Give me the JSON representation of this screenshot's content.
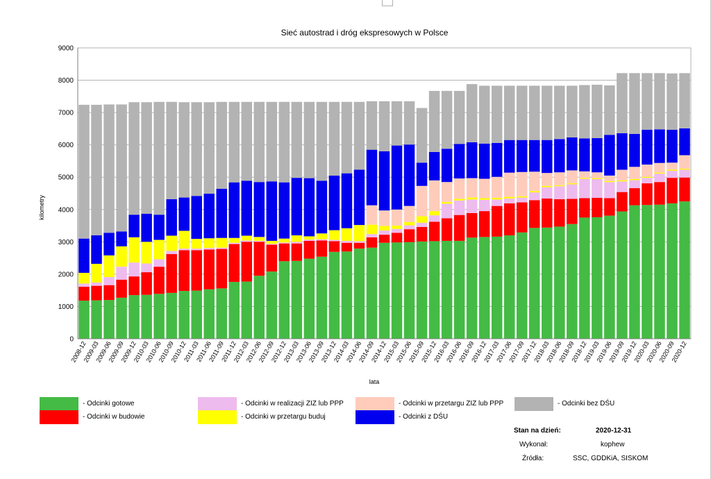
{
  "chart_data": {
    "type": "bar",
    "stacked": true,
    "title": "Sieć autostrad i dróg ekspresowych w Polsce",
    "xlabel": "lata",
    "ylabel": "kilometry",
    "ylim": [
      0,
      9000
    ],
    "yticks": [
      0,
      1000,
      2000,
      3000,
      4000,
      5000,
      6000,
      7000,
      8000,
      9000
    ],
    "grid": true,
    "categories": [
      "2008-12",
      "2009-03",
      "2009-06",
      "2009-09",
      "2009-12",
      "2010-03",
      "2010-06",
      "2010-09",
      "2010-12",
      "2011-03",
      "2011-06",
      "2011-09",
      "2011-12",
      "2012-03",
      "2012-06",
      "2012-09",
      "2012-12",
      "2013-03",
      "2013-06",
      "2013-09",
      "2013-12",
      "2014-03",
      "2014-06",
      "2014-09",
      "2014-12",
      "2015-03",
      "2015-06",
      "2015-09",
      "2015-12",
      "2016-03",
      "2016-06",
      "2016-09",
      "2016-12",
      "2017-03",
      "2017-06",
      "2017-09",
      "2017-12",
      "2018-03",
      "2018-06",
      "2018-09",
      "2018-12",
      "2019-03",
      "2019-06",
      "2019-09",
      "2019-12",
      "2020-03",
      "2020-06",
      "2020-09",
      "2020-12"
    ],
    "series": [
      {
        "name": "- Odcinki gotowe",
        "color": "#44bb44",
        "values": [
          1180,
          1190,
          1200,
          1270,
          1350,
          1360,
          1390,
          1420,
          1480,
          1490,
          1530,
          1560,
          1760,
          1770,
          1950,
          2080,
          2400,
          2410,
          2480,
          2540,
          2690,
          2700,
          2790,
          2820,
          2970,
          2980,
          2990,
          3010,
          3020,
          3030,
          3030,
          3130,
          3150,
          3160,
          3200,
          3290,
          3430,
          3440,
          3470,
          3550,
          3750,
          3760,
          3810,
          3940,
          4130,
          4140,
          4150,
          4190,
          4250
        ]
      },
      {
        "name": "- Odcinki w budowie",
        "color": "#ff0000",
        "values": [
          430,
          450,
          460,
          560,
          580,
          700,
          840,
          1200,
          1260,
          1250,
          1230,
          1220,
          1170,
          1230,
          1050,
          830,
          550,
          540,
          550,
          500,
          330,
          270,
          180,
          320,
          250,
          300,
          400,
          450,
          600,
          700,
          800,
          760,
          800,
          950,
          990,
          930,
          860,
          900,
          850,
          780,
          600,
          600,
          540,
          600,
          530,
          670,
          700,
          790,
          740
        ]
      },
      {
        "name": "- Odcinki w realizacji ZIZ lub PPP",
        "color": "#eebbee",
        "values": [
          100,
          100,
          250,
          400,
          430,
          270,
          230,
          100,
          50,
          50,
          50,
          40,
          40,
          40,
          30,
          30,
          30,
          50,
          40,
          40,
          40,
          60,
          50,
          100,
          130,
          120,
          120,
          130,
          200,
          450,
          450,
          420,
          350,
          200,
          150,
          150,
          240,
          350,
          400,
          450,
          600,
          580,
          500,
          330,
          250,
          170,
          260,
          220,
          240
        ]
      },
      {
        "name": "- Odcinki w przetargu buduj",
        "color": "#ffff00",
        "values": [
          330,
          580,
          670,
          630,
          780,
          670,
          600,
          470,
          550,
          300,
          300,
          300,
          150,
          150,
          120,
          90,
          120,
          200,
          100,
          180,
          300,
          390,
          500,
          290,
          140,
          100,
          100,
          200,
          130,
          50,
          50,
          60,
          50,
          50,
          50,
          40,
          40,
          40,
          30,
          30,
          30,
          30,
          30,
          30,
          30,
          30,
          30,
          30,
          30
        ]
      },
      {
        "name": "- Odcinki w przetargu ZIZ lub PPP",
        "color": "#ffccbb",
        "values": [
          0,
          0,
          0,
          0,
          0,
          0,
          0,
          0,
          0,
          0,
          0,
          0,
          0,
          0,
          0,
          0,
          0,
          0,
          0,
          0,
          0,
          0,
          0,
          600,
          480,
          500,
          500,
          940,
          950,
          620,
          630,
          600,
          600,
          650,
          750,
          750,
          600,
          400,
          400,
          400,
          200,
          180,
          170,
          330,
          380,
          380,
          300,
          220,
          420
        ]
      },
      {
        "name": "- Odcinki z DŚU",
        "color": "#0000ee",
        "values": [
          1060,
          880,
          700,
          460,
          700,
          870,
          780,
          1130,
          1030,
          1330,
          1380,
          1520,
          1720,
          1700,
          1700,
          1840,
          1740,
          1780,
          1800,
          1630,
          1690,
          1700,
          1710,
          1720,
          1830,
          1980,
          1900,
          720,
          880,
          1030,
          1070,
          1110,
          1090,
          1050,
          1010,
          990,
          980,
          1020,
          1030,
          1020,
          1020,
          1060,
          1260,
          1130,
          1020,
          1080,
          1040,
          1020,
          830
        ]
      },
      {
        "name": "- Odcinki bez DŚU",
        "color": "#b3b3b3",
        "values": [
          4140,
          4040,
          3970,
          3930,
          3480,
          3450,
          3490,
          3010,
          2950,
          2900,
          2830,
          2690,
          2490,
          2440,
          2480,
          2460,
          2490,
          2350,
          2360,
          2440,
          2280,
          2210,
          2100,
          1500,
          1550,
          1370,
          1340,
          1690,
          1890,
          1790,
          1640,
          1800,
          1790,
          1770,
          1680,
          1680,
          1680,
          1680,
          1650,
          1600,
          1650,
          1650,
          1530,
          1860,
          1880,
          1750,
          1740,
          1740,
          1710
        ]
      }
    ]
  },
  "legend": [
    {
      "label": "- Odcinki gotowe",
      "color": "#44bb44"
    },
    {
      "label": "- Odcinki w budowie",
      "color": "#ff0000"
    },
    {
      "label": "- Odcinki w realizacji ZIZ lub PPP",
      "color": "#eebbee"
    },
    {
      "label": "- Odcinki w przetargu buduj",
      "color": "#ffff00"
    },
    {
      "label": "- Odcinki w przetargu ZIZ lub PPP",
      "color": "#ffccbb"
    },
    {
      "label": "- Odcinki z DŚU",
      "color": "#0000ee"
    },
    {
      "label": "- Odcinki bez DŚU",
      "color": "#b3b3b3"
    }
  ],
  "info": {
    "date_label": "Stan na dzień:",
    "date_value": "2020-12-31",
    "author_label": "Wykonał:",
    "author_value": "kophew",
    "sources_label": "Źródła:",
    "sources_value": "SSC, GDDKiA, SISKOM"
  }
}
